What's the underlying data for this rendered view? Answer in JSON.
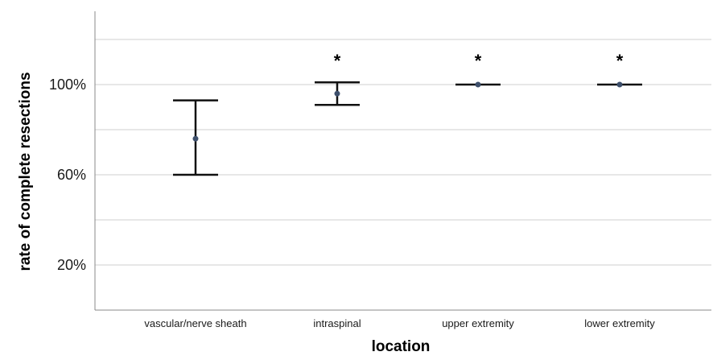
{
  "chart_data": {
    "type": "errorbar",
    "categories": [
      "vascular/nerve sheath",
      "intraspinal",
      "upper extremity",
      "lower extremity"
    ],
    "series": [
      {
        "mean": [
          76,
          96,
          100,
          100
        ],
        "lower": [
          60,
          91,
          100,
          100
        ],
        "upper": [
          93,
          101,
          100,
          100
        ]
      }
    ],
    "annotations": [
      "",
      "*",
      "*",
      "*"
    ],
    "ytick_values": [
      20,
      60,
      100
    ],
    "ytick_labels": [
      "20%",
      "60%",
      "100%"
    ],
    "ylim": [
      0,
      120
    ],
    "grid": true,
    "xlabel": "location",
    "ylabel": "rate of complete resections",
    "colors": {
      "point": "#3d4f6b",
      "bar": "#111111",
      "grid": "#cfcfcf"
    }
  }
}
